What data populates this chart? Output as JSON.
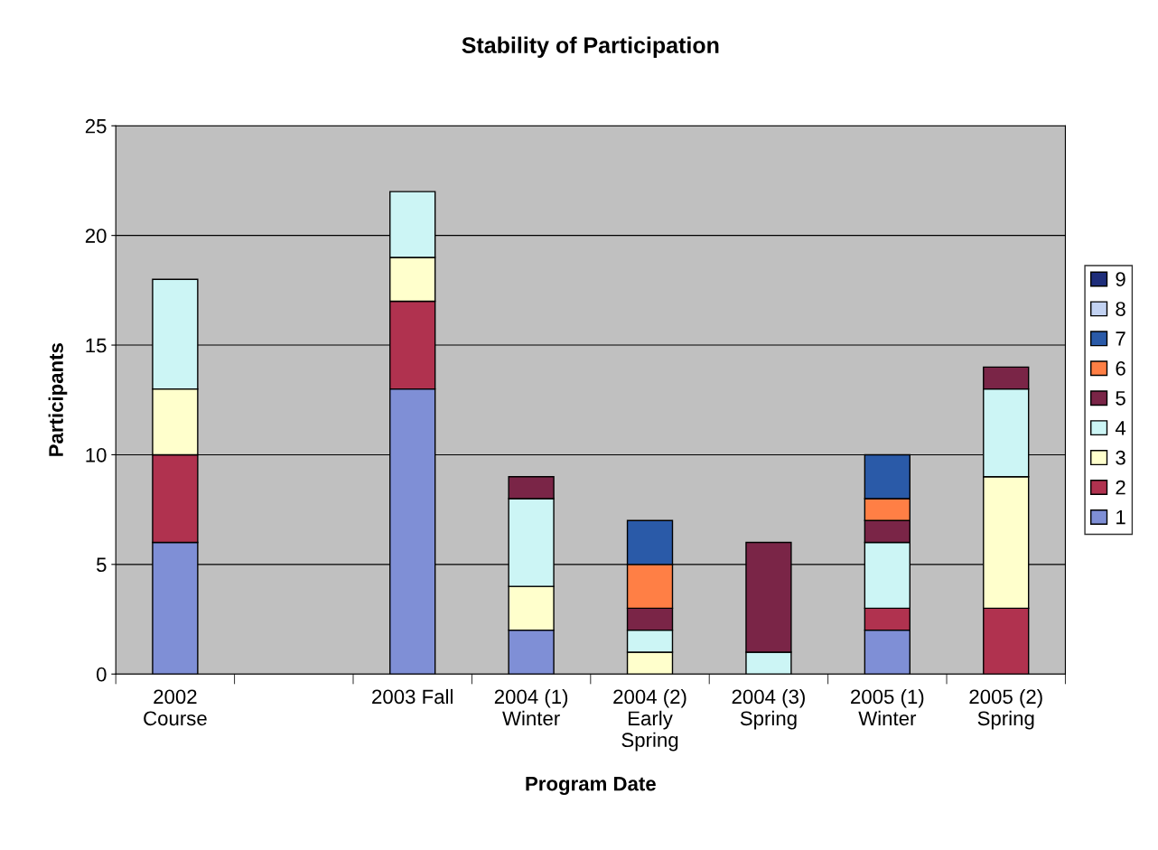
{
  "chart_data": {
    "type": "bar",
    "stacked": true,
    "title": "Stability of Participation",
    "xlabel": "Program Date",
    "ylabel": "Participants",
    "categories": [
      "2002\nCourse",
      null,
      "2003 Fall",
      "2004 (1)\nWinter",
      "2004 (2)\nEarly\nSpring",
      "2004 (3)\nSpring",
      "2005 (1)\nWinter",
      "2005 (2)\nSpring"
    ],
    "series": [
      {
        "name": "1",
        "color": "#7f8fd6",
        "values": [
          6,
          null,
          13,
          2,
          null,
          null,
          2,
          null
        ]
      },
      {
        "name": "2",
        "color": "#b0324f",
        "values": [
          4,
          null,
          4,
          null,
          null,
          null,
          1,
          3
        ]
      },
      {
        "name": "3",
        "color": "#ffffcc",
        "values": [
          3,
          null,
          2,
          2,
          1,
          null,
          null,
          6
        ]
      },
      {
        "name": "4",
        "color": "#ccf5f5",
        "values": [
          5,
          null,
          3,
          4,
          1,
          1,
          3,
          4
        ]
      },
      {
        "name": "5",
        "color": "#7a2547",
        "values": [
          null,
          null,
          null,
          1,
          1,
          5,
          1,
          1
        ]
      },
      {
        "name": "6",
        "color": "#ff7f45",
        "values": [
          null,
          null,
          null,
          null,
          2,
          null,
          1,
          null
        ]
      },
      {
        "name": "7",
        "color": "#2a5aa8",
        "values": [
          null,
          null,
          null,
          null,
          2,
          null,
          2,
          null
        ]
      },
      {
        "name": "8",
        "color": "#c2d2f2",
        "values": [
          null,
          null,
          null,
          null,
          null,
          null,
          null,
          null
        ]
      },
      {
        "name": "9",
        "color": "#1e2d7a",
        "values": [
          null,
          null,
          null,
          null,
          null,
          null,
          null,
          null
        ]
      }
    ],
    "ylim": [
      0,
      25
    ],
    "yticks": [
      0,
      5,
      10,
      15,
      20,
      25
    ],
    "grid": "y",
    "legend": "right"
  }
}
